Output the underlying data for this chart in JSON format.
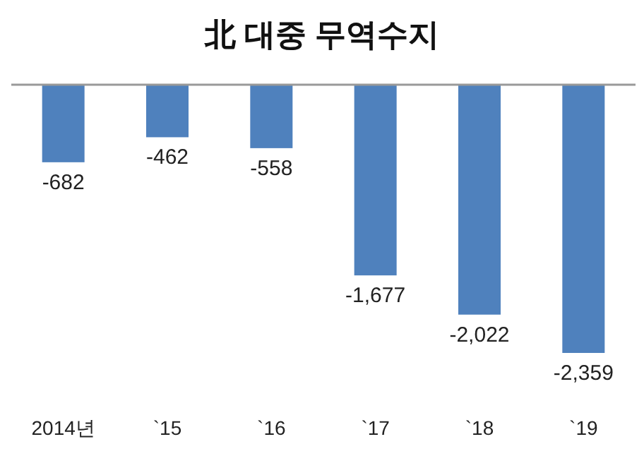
{
  "chart_data": {
    "type": "bar",
    "title": "北 대중 무역수지",
    "categories": [
      "2014년",
      "`15",
      "`16",
      "`17",
      "`18",
      "`19"
    ],
    "values": [
      -682,
      -462,
      -558,
      -1677,
      -2022,
      -2359
    ],
    "value_labels": [
      "-682",
      "-462",
      "-558",
      "-1,677",
      "-2,022",
      "-2,359"
    ],
    "color": "#4f81bd"
  }
}
